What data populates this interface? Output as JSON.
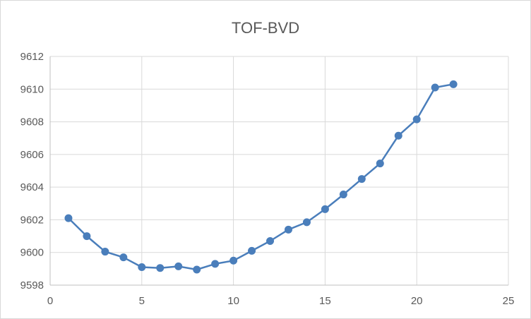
{
  "chart_data": {
    "type": "line",
    "title": "TOF-BVD",
    "xlabel": "",
    "ylabel": "",
    "xlim": [
      0,
      25
    ],
    "ylim": [
      9598,
      9612
    ],
    "x_ticks": [
      0,
      5,
      10,
      15,
      20,
      25
    ],
    "y_ticks": [
      9598,
      9600,
      9602,
      9604,
      9606,
      9608,
      9610,
      9612
    ],
    "grid": true,
    "legend": "none",
    "series": [
      {
        "color": "#4a7ebb",
        "x": [
          1,
          2,
          3,
          4,
          5,
          6,
          7,
          8,
          9,
          10,
          11,
          12,
          13,
          14,
          15,
          16,
          17,
          18,
          19,
          20,
          21,
          22
        ],
        "y": [
          9602.1,
          9601.0,
          9600.05,
          9599.7,
          9599.1,
          9599.05,
          9599.15,
          9598.95,
          9599.3,
          9599.5,
          9600.1,
          9600.7,
          9601.4,
          9601.85,
          9602.65,
          9603.55,
          9604.5,
          9605.45,
          9607.15,
          9608.15,
          9610.1,
          9610.3
        ]
      }
    ]
  }
}
